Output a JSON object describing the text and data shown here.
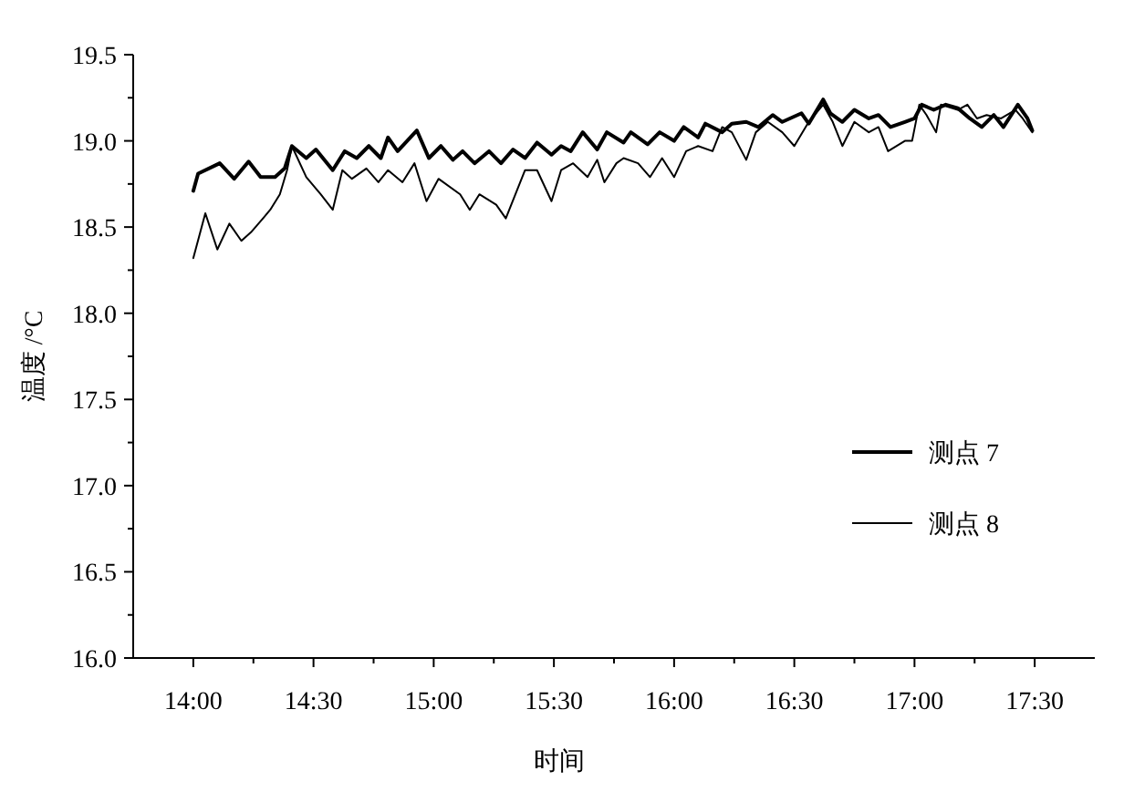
{
  "chart_data": {
    "type": "line",
    "xlabel": "时间",
    "ylabel": "温度 /°C",
    "xlim": [
      13.75,
      17.75
    ],
    "ylim": [
      16.0,
      19.5
    ],
    "xticks": [
      {
        "value": 14,
        "label": "14:00"
      },
      {
        "value": 14.25,
        "label": null
      },
      {
        "value": 14.5,
        "label": "14:30"
      },
      {
        "value": 14.75,
        "label": null
      },
      {
        "value": 15,
        "label": "15:00"
      },
      {
        "value": 15.25,
        "label": null
      },
      {
        "value": 15.5,
        "label": "15:30"
      },
      {
        "value": 15.75,
        "label": null
      },
      {
        "value": 16,
        "label": "16:00"
      },
      {
        "value": 16.25,
        "label": null
      },
      {
        "value": 16.5,
        "label": "16:30"
      },
      {
        "value": 16.75,
        "label": null
      },
      {
        "value": 17,
        "label": "17:00"
      },
      {
        "value": 17.25,
        "label": null
      },
      {
        "value": 17.5,
        "label": "17:30"
      }
    ],
    "yticks": [
      {
        "value": 16.0,
        "label": "16.0"
      },
      {
        "value": 16.25,
        "label": null
      },
      {
        "value": 16.5,
        "label": "16.5"
      },
      {
        "value": 16.75,
        "label": null
      },
      {
        "value": 17.0,
        "label": "17.0"
      },
      {
        "value": 17.25,
        "label": null
      },
      {
        "value": 17.5,
        "label": "17.5"
      },
      {
        "value": 17.75,
        "label": null
      },
      {
        "value": 18.0,
        "label": "18.0"
      },
      {
        "value": 18.25,
        "label": null
      },
      {
        "value": 18.5,
        "label": "18.5"
      },
      {
        "value": 18.75,
        "label": null
      },
      {
        "value": 19.0,
        "label": "19.0"
      },
      {
        "value": 19.25,
        "label": null
      },
      {
        "value": 19.5,
        "label": "19.5"
      }
    ],
    "legend": "right",
    "marker": "none",
    "line_style": "solid",
    "series": [
      {
        "name": "测点 7",
        "color": "#000000",
        "x": [
          14.0,
          14.02,
          14.11,
          14.17,
          14.23,
          14.28,
          14.34,
          14.38,
          14.41,
          14.47,
          14.51,
          14.58,
          14.63,
          14.68,
          14.73,
          14.78,
          14.81,
          14.85,
          14.93,
          14.98,
          15.03,
          15.08,
          15.12,
          15.17,
          15.23,
          15.28,
          15.33,
          15.38,
          15.43,
          15.49,
          15.53,
          15.57,
          15.62,
          15.68,
          15.72,
          15.79,
          15.82,
          15.89,
          15.94,
          16.0,
          16.04,
          16.1,
          16.13,
          16.2,
          16.24,
          16.3,
          16.35,
          16.41,
          16.45,
          16.53,
          16.56,
          16.62,
          16.65,
          16.7,
          16.75,
          16.81,
          16.85,
          16.9,
          16.96,
          17.0,
          17.03,
          17.08,
          17.13,
          17.18,
          17.23,
          17.28,
          17.33,
          17.37,
          17.43,
          17.47,
          17.49
        ],
        "values": [
          18.71,
          18.81,
          18.87,
          18.78,
          18.88,
          18.79,
          18.79,
          18.84,
          18.97,
          18.9,
          18.95,
          18.83,
          18.94,
          18.9,
          18.97,
          18.9,
          19.02,
          18.94,
          19.06,
          18.9,
          18.97,
          18.89,
          18.94,
          18.87,
          18.94,
          18.87,
          18.95,
          18.9,
          18.99,
          18.92,
          18.97,
          18.94,
          19.05,
          18.95,
          19.05,
          18.99,
          19.05,
          18.98,
          19.05,
          19.0,
          19.08,
          19.02,
          19.1,
          19.05,
          19.1,
          19.11,
          19.08,
          19.15,
          19.11,
          19.16,
          19.1,
          19.24,
          19.16,
          19.11,
          19.18,
          19.13,
          19.15,
          19.08,
          19.11,
          19.13,
          19.21,
          19.18,
          19.21,
          19.19,
          19.13,
          19.08,
          19.15,
          19.08,
          19.21,
          19.13,
          19.06
        ]
      },
      {
        "name": "测点 8",
        "color": "#000000",
        "x": [
          14.0,
          14.05,
          14.1,
          14.15,
          14.2,
          14.24,
          14.29,
          14.32,
          14.36,
          14.39,
          14.41,
          14.47,
          14.53,
          14.58,
          14.62,
          14.66,
          14.72,
          14.77,
          14.81,
          14.87,
          14.92,
          14.97,
          15.02,
          15.11,
          15.15,
          15.19,
          15.26,
          15.3,
          15.34,
          15.38,
          15.43,
          15.49,
          15.53,
          15.58,
          15.64,
          15.68,
          15.71,
          15.76,
          15.79,
          15.85,
          15.9,
          15.95,
          16.0,
          16.05,
          16.1,
          16.16,
          16.2,
          16.24,
          16.3,
          16.34,
          16.39,
          16.45,
          16.5,
          16.56,
          16.62,
          16.66,
          16.7,
          16.75,
          16.81,
          16.85,
          16.89,
          16.96,
          16.99,
          17.02,
          17.05,
          17.09,
          17.11,
          17.18,
          17.22,
          17.26,
          17.3,
          17.36,
          17.42,
          17.45,
          17.49
        ],
        "values": [
          18.32,
          18.58,
          18.37,
          18.52,
          18.42,
          18.47,
          18.55,
          18.6,
          18.69,
          18.83,
          18.97,
          18.79,
          18.69,
          18.6,
          18.83,
          18.78,
          18.84,
          18.76,
          18.83,
          18.76,
          18.87,
          18.65,
          18.78,
          18.69,
          18.6,
          18.69,
          18.63,
          18.55,
          18.69,
          18.83,
          18.83,
          18.65,
          18.83,
          18.87,
          18.79,
          18.89,
          18.76,
          18.87,
          18.9,
          18.87,
          18.79,
          18.9,
          18.79,
          18.94,
          18.97,
          18.94,
          19.08,
          19.05,
          18.89,
          19.05,
          19.11,
          19.05,
          18.97,
          19.11,
          19.21,
          19.11,
          18.97,
          19.11,
          19.05,
          19.08,
          18.94,
          19.0,
          19.0,
          19.21,
          19.15,
          19.05,
          19.21,
          19.18,
          19.21,
          19.13,
          19.15,
          19.13,
          19.18,
          19.13,
          19.05
        ]
      }
    ]
  }
}
